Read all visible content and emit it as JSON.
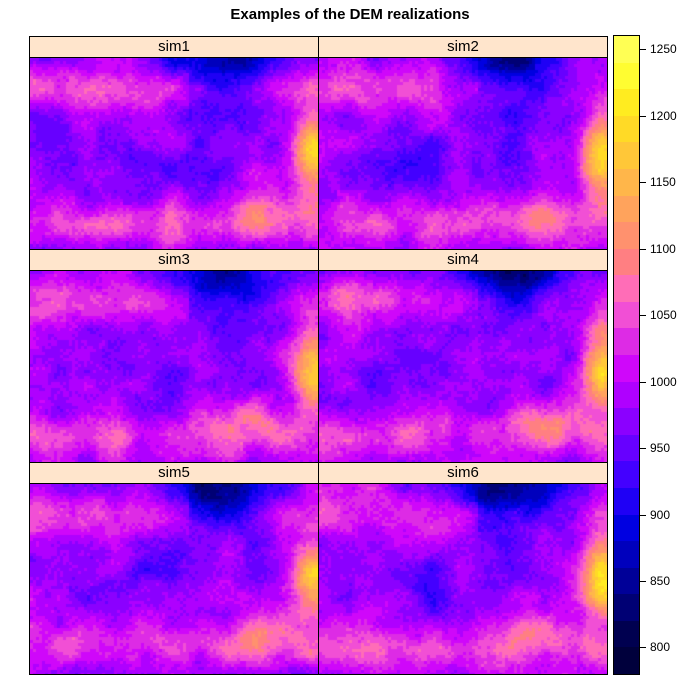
{
  "chart_data": {
    "type": "heatmap",
    "title": "Examples of the DEM realizations",
    "panels": [
      {
        "name": "sim1"
      },
      {
        "name": "sim2"
      },
      {
        "name": "sim3"
      },
      {
        "name": "sim4"
      },
      {
        "name": "sim5"
      },
      {
        "name": "sim6"
      }
    ],
    "colorbar": {
      "range": [
        780,
        1260
      ],
      "ticks": [
        800,
        850,
        900,
        950,
        1000,
        1050,
        1100,
        1150,
        1200,
        1250
      ],
      "levels": 24,
      "palette": [
        "#000033",
        "#00004d",
        "#000080",
        "#0000b3",
        "#0000e6",
        "#3300ff",
        "#6600ff",
        "#9900ff",
        "#cc00ff",
        "#e032e0",
        "#ff66cc",
        "#ff8080",
        "#ff9966",
        "#ffb34d",
        "#ffcc33",
        "#ffe61a",
        "#ffff33",
        "#ffff66"
      ]
    },
    "grid": false
  }
}
